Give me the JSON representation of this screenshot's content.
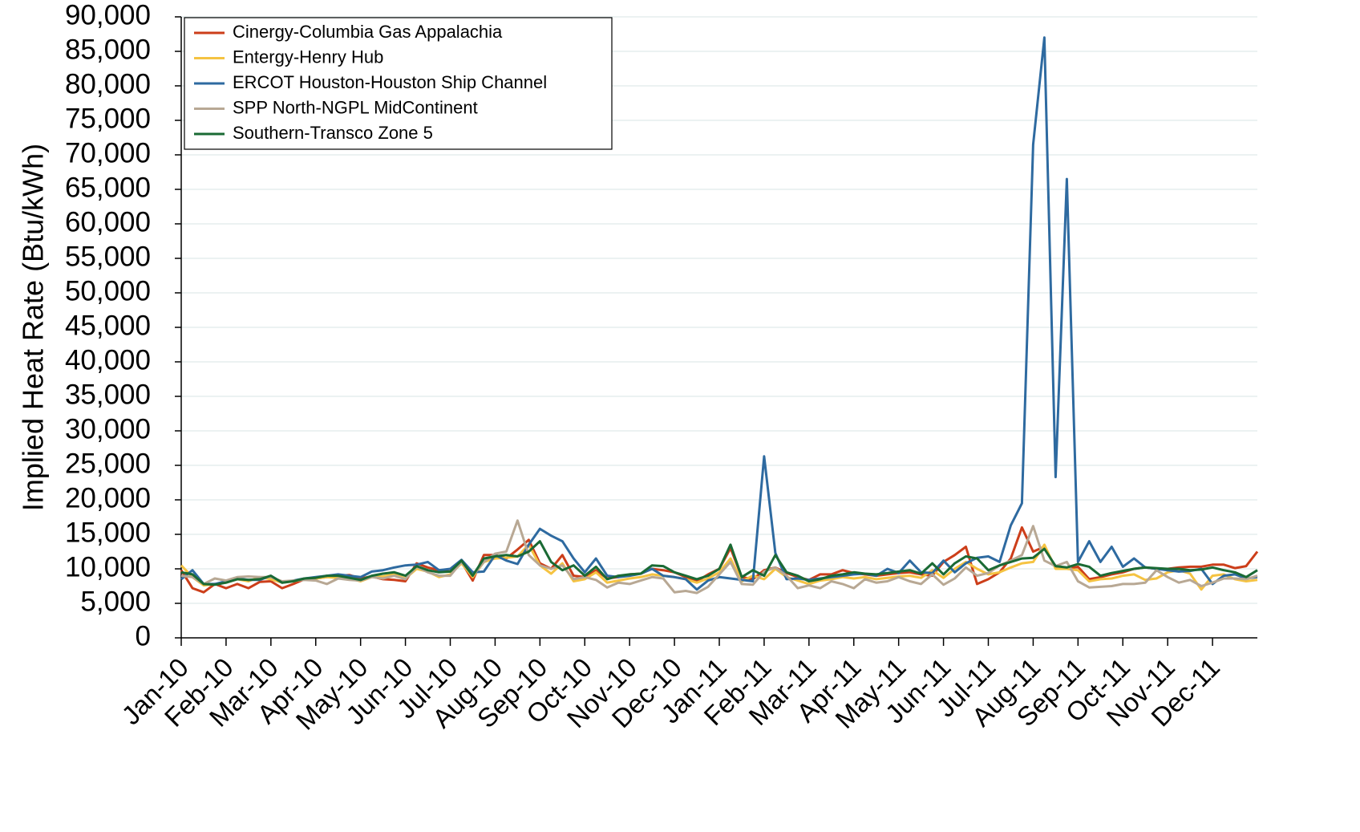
{
  "chart_data": {
    "type": "line",
    "y_label": "Implied Heat Rate (Btu/kWh)",
    "categories": [
      "Jan-10",
      null,
      null,
      null,
      "Feb-10",
      null,
      null,
      null,
      "Mar-10",
      null,
      null,
      null,
      "Apr-10",
      null,
      null,
      null,
      "May-10",
      null,
      null,
      null,
      "Jun-10",
      null,
      null,
      null,
      "Jul-10",
      null,
      null,
      null,
      "Aug-10",
      null,
      null,
      null,
      "Sep-10",
      null,
      null,
      null,
      "Oct-10",
      null,
      null,
      null,
      "Nov-10",
      null,
      null,
      null,
      "Dec-10",
      null,
      null,
      null,
      "Jan-11",
      null,
      null,
      null,
      "Feb-11",
      null,
      null,
      null,
      "Mar-11",
      null,
      null,
      null,
      "Apr-11",
      null,
      null,
      null,
      "May-11",
      null,
      null,
      null,
      "Jun-11",
      null,
      null,
      null,
      "Jul-11",
      null,
      null,
      null,
      "Aug-11",
      null,
      null,
      null,
      "Sep-11",
      null,
      null,
      null,
      "Oct-11",
      null,
      null,
      null,
      "Nov-11",
      null,
      null,
      null,
      "Dec-11",
      null,
      null,
      null,
      null
    ],
    "series": [
      {
        "name": "Cinergy-Columbia Gas Appalachia",
        "color": "#cc3e1a",
        "values": [
          9800,
          7200,
          6600,
          7800,
          7200,
          7800,
          7200,
          8100,
          8200,
          7200,
          7800,
          8500,
          8600,
          8800,
          9000,
          9100,
          8600,
          8900,
          8500,
          8400,
          8200,
          10800,
          10200,
          9800,
          9600,
          11000,
          8300,
          12000,
          12000,
          11500,
          12800,
          14200,
          10800,
          10000,
          12000,
          9000,
          8800,
          9800,
          8600,
          8800,
          9200,
          9300,
          10000,
          9800,
          9500,
          8800,
          8200,
          9200,
          10000,
          13000,
          8800,
          8500,
          9800,
          10200,
          9400,
          8800,
          8400,
          9200,
          9200,
          9800,
          9400,
          9200,
          9000,
          9200,
          9400,
          9500,
          9200,
          9000,
          11000,
          12000,
          13200,
          7800,
          8500,
          9500,
          11500,
          16000,
          12500,
          13200,
          10200,
          10000,
          10300,
          8500,
          8800,
          9200,
          9500,
          10000,
          10200,
          10000,
          10000,
          10200,
          10300,
          10300,
          10600,
          10600,
          10100,
          10400,
          12500
        ]
      },
      {
        "name": "Entergy-Henry Hub",
        "color": "#f5c342",
        "values": [
          10500,
          8800,
          7600,
          7800,
          8000,
          8500,
          8200,
          8800,
          8500,
          8000,
          8200,
          8500,
          8600,
          8800,
          8700,
          8600,
          8200,
          8800,
          8900,
          9200,
          8600,
          10000,
          9600,
          8800,
          9200,
          10800,
          8800,
          11000,
          11500,
          11600,
          11800,
          13500,
          10500,
          9300,
          10800,
          8200,
          8500,
          9500,
          8000,
          8300,
          8600,
          8800,
          9200,
          9000,
          8800,
          8500,
          8000,
          8600,
          9500,
          11500,
          8200,
          9000,
          8500,
          10000,
          8800,
          8300,
          7800,
          8300,
          8500,
          8800,
          8600,
          8800,
          8500,
          8700,
          8900,
          9000,
          8700,
          9800,
          8700,
          10000,
          11000,
          10000,
          9200,
          9500,
          10200,
          10800,
          11000,
          13500,
          10000,
          10000,
          9800,
          8200,
          8500,
          8600,
          9000,
          9200,
          8400,
          8600,
          9500,
          9800,
          9300,
          7000,
          9000,
          9200,
          8500,
          8200,
          8400
        ]
      },
      {
        "name": "ERCOT Houston-Houston Ship Channel",
        "color": "#2e6aa0",
        "values": [
          8500,
          9800,
          7800,
          7800,
          8200,
          8600,
          8400,
          8400,
          9000,
          8000,
          8300,
          8600,
          8800,
          9000,
          9200,
          9000,
          8800,
          9600,
          9800,
          10200,
          10500,
          10600,
          11000,
          9800,
          10000,
          11300,
          9500,
          9600,
          12000,
          11200,
          10700,
          13500,
          15800,
          14800,
          14000,
          11500,
          9500,
          11500,
          9000,
          8800,
          9000,
          9300,
          10000,
          9000,
          8800,
          8500,
          7000,
          8300,
          8800,
          8600,
          8400,
          8200,
          26300,
          12300,
          8500,
          8600,
          8400,
          8600,
          8800,
          9000,
          9200,
          9300,
          9000,
          10000,
          9400,
          11200,
          9500,
          9400,
          11200,
          9500,
          10800,
          11600,
          11800,
          11000,
          16300,
          19500,
          71500,
          87000,
          23300,
          66500,
          11000,
          14000,
          11000,
          13200,
          10300,
          11500,
          10200,
          10000,
          9800,
          9600,
          9700,
          10000,
          7800,
          9000,
          9200,
          8600,
          8800
        ]
      },
      {
        "name": "SPP North-NGPL MidContinent",
        "color": "#b8a894",
        "values": [
          9000,
          8800,
          7800,
          8600,
          8300,
          8800,
          8900,
          8800,
          8800,
          8200,
          8300,
          8400,
          8300,
          7800,
          8600,
          8400,
          8300,
          8800,
          8600,
          9000,
          8500,
          10300,
          9500,
          9000,
          9000,
          11000,
          9000,
          11000,
          12200,
          12500,
          17000,
          12000,
          10500,
          10000,
          10500,
          8500,
          8800,
          8400,
          7300,
          8000,
          7800,
          8300,
          8800,
          8600,
          6600,
          6800,
          6500,
          7400,
          9200,
          11000,
          7800,
          7700,
          9600,
          10200,
          9000,
          7200,
          7600,
          7200,
          8200,
          7800,
          7200,
          8500,
          8000,
          8200,
          8800,
          8200,
          7800,
          9200,
          7700,
          8600,
          10200,
          9000,
          9400,
          10500,
          11200,
          12000,
          16200,
          11200,
          10400,
          11000,
          8200,
          7300,
          7400,
          7500,
          7800,
          7800,
          8000,
          9800,
          8800,
          8000,
          8400,
          7500,
          8000,
          8600,
          8600,
          8500,
          9000
        ]
      },
      {
        "name": "Southern-Transco Zone 5",
        "color": "#1a6a34",
        "values": [
          9500,
          9200,
          7800,
          7700,
          8000,
          8500,
          8400,
          8500,
          9000,
          8000,
          8200,
          8600,
          8700,
          9000,
          9000,
          8700,
          8400,
          9000,
          9300,
          9500,
          9000,
          10400,
          9800,
          9500,
          9600,
          11200,
          9000,
          11500,
          11800,
          12000,
          11800,
          12500,
          14000,
          11000,
          9800,
          10500,
          9000,
          10300,
          8500,
          9000,
          9200,
          9300,
          10500,
          10400,
          9500,
          9000,
          8500,
          9000,
          10000,
          13500,
          8800,
          9800,
          9000,
          12000,
          9500,
          9000,
          8200,
          8500,
          9000,
          9200,
          9500,
          9300,
          9200,
          9400,
          9600,
          9800,
          9300,
          10800,
          9200,
          10800,
          11800,
          11500,
          9800,
          10500,
          11000,
          11500,
          11600,
          12900,
          10400,
          10200,
          10700,
          10300,
          9000,
          9400,
          9700,
          10000,
          10200,
          10100,
          10000,
          10000,
          9800,
          9900,
          10200,
          9800,
          9500,
          8800,
          9800
        ]
      }
    ],
    "ylim": [
      0,
      90000
    ],
    "yticks": [
      0,
      {
        "value": 5000,
        "label": "5,000"
      },
      {
        "value": 10000,
        "label": "10,000"
      },
      {
        "value": 15000,
        "label": "15,000"
      },
      {
        "value": 20000,
        "label": "20,000"
      },
      {
        "value": 25000,
        "label": "25,000"
      },
      {
        "value": 30000,
        "label": "30,000"
      },
      {
        "value": 35000,
        "label": "35,000"
      },
      {
        "value": 40000,
        "label": "40,000"
      },
      {
        "value": 45000,
        "label": "45,000"
      },
      {
        "value": 50000,
        "label": "50,000"
      },
      {
        "value": 55000,
        "label": "55,000"
      },
      {
        "value": 60000,
        "label": "60,000"
      },
      {
        "value": 65000,
        "label": "65,000"
      },
      {
        "value": 70000,
        "label": "70,000"
      },
      {
        "value": 75000,
        "label": "75,000"
      },
      {
        "value": 80000,
        "label": "80,000"
      },
      {
        "value": 85000,
        "label": "85,000"
      },
      {
        "value": 90000,
        "label": "90,000"
      }
    ],
    "grid": true,
    "legend": "top-left"
  }
}
